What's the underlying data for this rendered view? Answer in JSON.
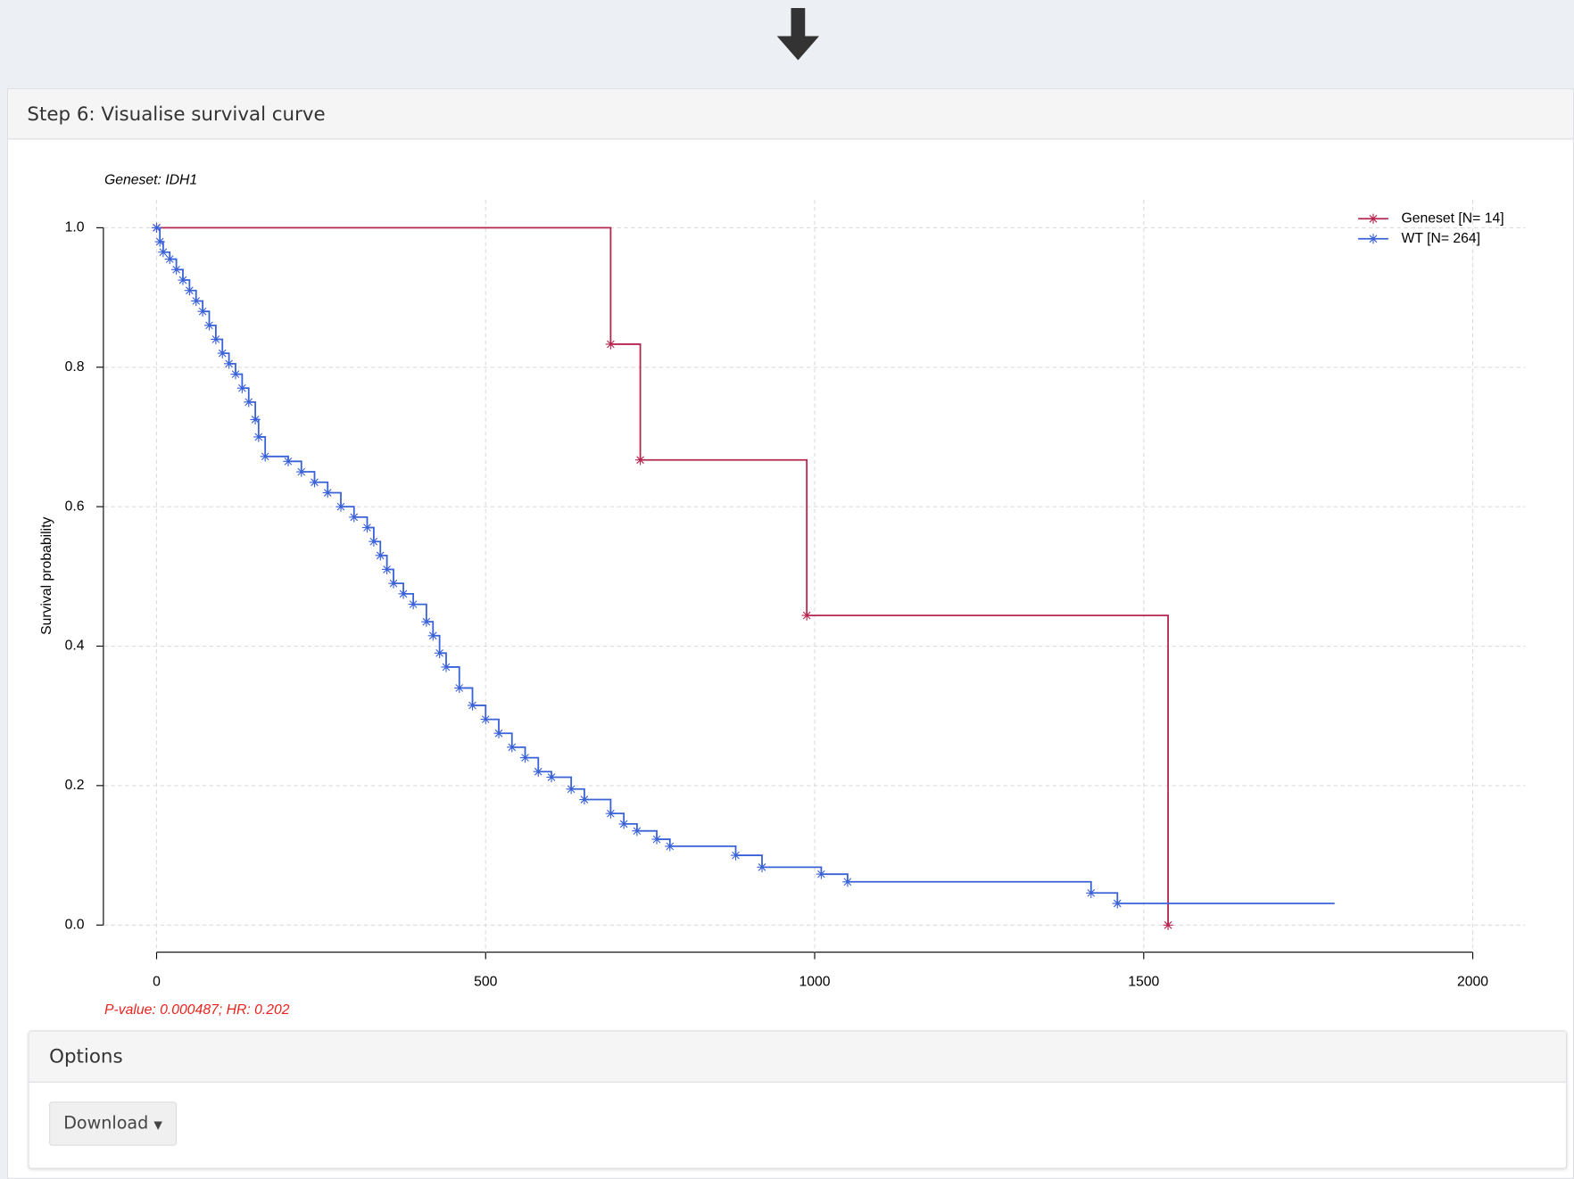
{
  "panel_title": "Step 6: Visualise survival curve",
  "options_title": "Options",
  "download_label": "Download",
  "chart_data": {
    "type": "step",
    "subtitle": "Geneset: IDH1",
    "y_label": "Survival probability",
    "annotation": "P-value: 0.000487; HR: 0.202",
    "xlim": [
      -80,
      2080
    ],
    "ylim": [
      -0.04,
      1.04
    ],
    "xticks": [
      0,
      500,
      1000,
      1500,
      2000
    ],
    "yticks": [
      {
        "value": 0,
        "label": "0.0"
      },
      {
        "value": 0.2,
        "label": "0.2"
      },
      {
        "value": 0.4,
        "label": "0.4"
      },
      {
        "value": 0.6,
        "label": "0.6"
      },
      {
        "value": 0.8,
        "label": "0.8"
      },
      {
        "value": 1,
        "label": "1.0"
      }
    ],
    "grid": true,
    "legend": "top-right",
    "series": [
      {
        "name": "Geneset [N= 14]",
        "color": "#b5264f",
        "x": [
          0,
          690,
          735,
          988,
          1537
        ],
        "values": [
          1,
          0.833,
          0.667,
          0.444,
          0
        ]
      },
      {
        "name": "WT [N= 264]",
        "color": "#3a62d8",
        "x": [
          0,
          5,
          10,
          20,
          30,
          40,
          50,
          60,
          70,
          80,
          90,
          100,
          110,
          120,
          130,
          140,
          150,
          155,
          165,
          200,
          220,
          240,
          260,
          280,
          300,
          320,
          330,
          340,
          350,
          360,
          375,
          390,
          410,
          420,
          430,
          440,
          460,
          480,
          500,
          520,
          540,
          560,
          580,
          600,
          630,
          650,
          690,
          710,
          730,
          760,
          780,
          880,
          920,
          1010,
          1050,
          1420,
          1460,
          1790
        ],
        "values": [
          1,
          0.98,
          0.965,
          0.955,
          0.94,
          0.925,
          0.91,
          0.895,
          0.88,
          0.86,
          0.84,
          0.82,
          0.805,
          0.79,
          0.77,
          0.75,
          0.725,
          0.7,
          0.672,
          0.665,
          0.65,
          0.635,
          0.62,
          0.6,
          0.585,
          0.57,
          0.55,
          0.53,
          0.51,
          0.49,
          0.475,
          0.46,
          0.435,
          0.415,
          0.39,
          0.37,
          0.34,
          0.315,
          0.295,
          0.275,
          0.255,
          0.24,
          0.22,
          0.212,
          0.195,
          0.18,
          0.16,
          0.145,
          0.135,
          0.123,
          0.113,
          0.1,
          0.083,
          0.073,
          0.062,
          0.046,
          0.031,
          0.031
        ]
      }
    ]
  }
}
